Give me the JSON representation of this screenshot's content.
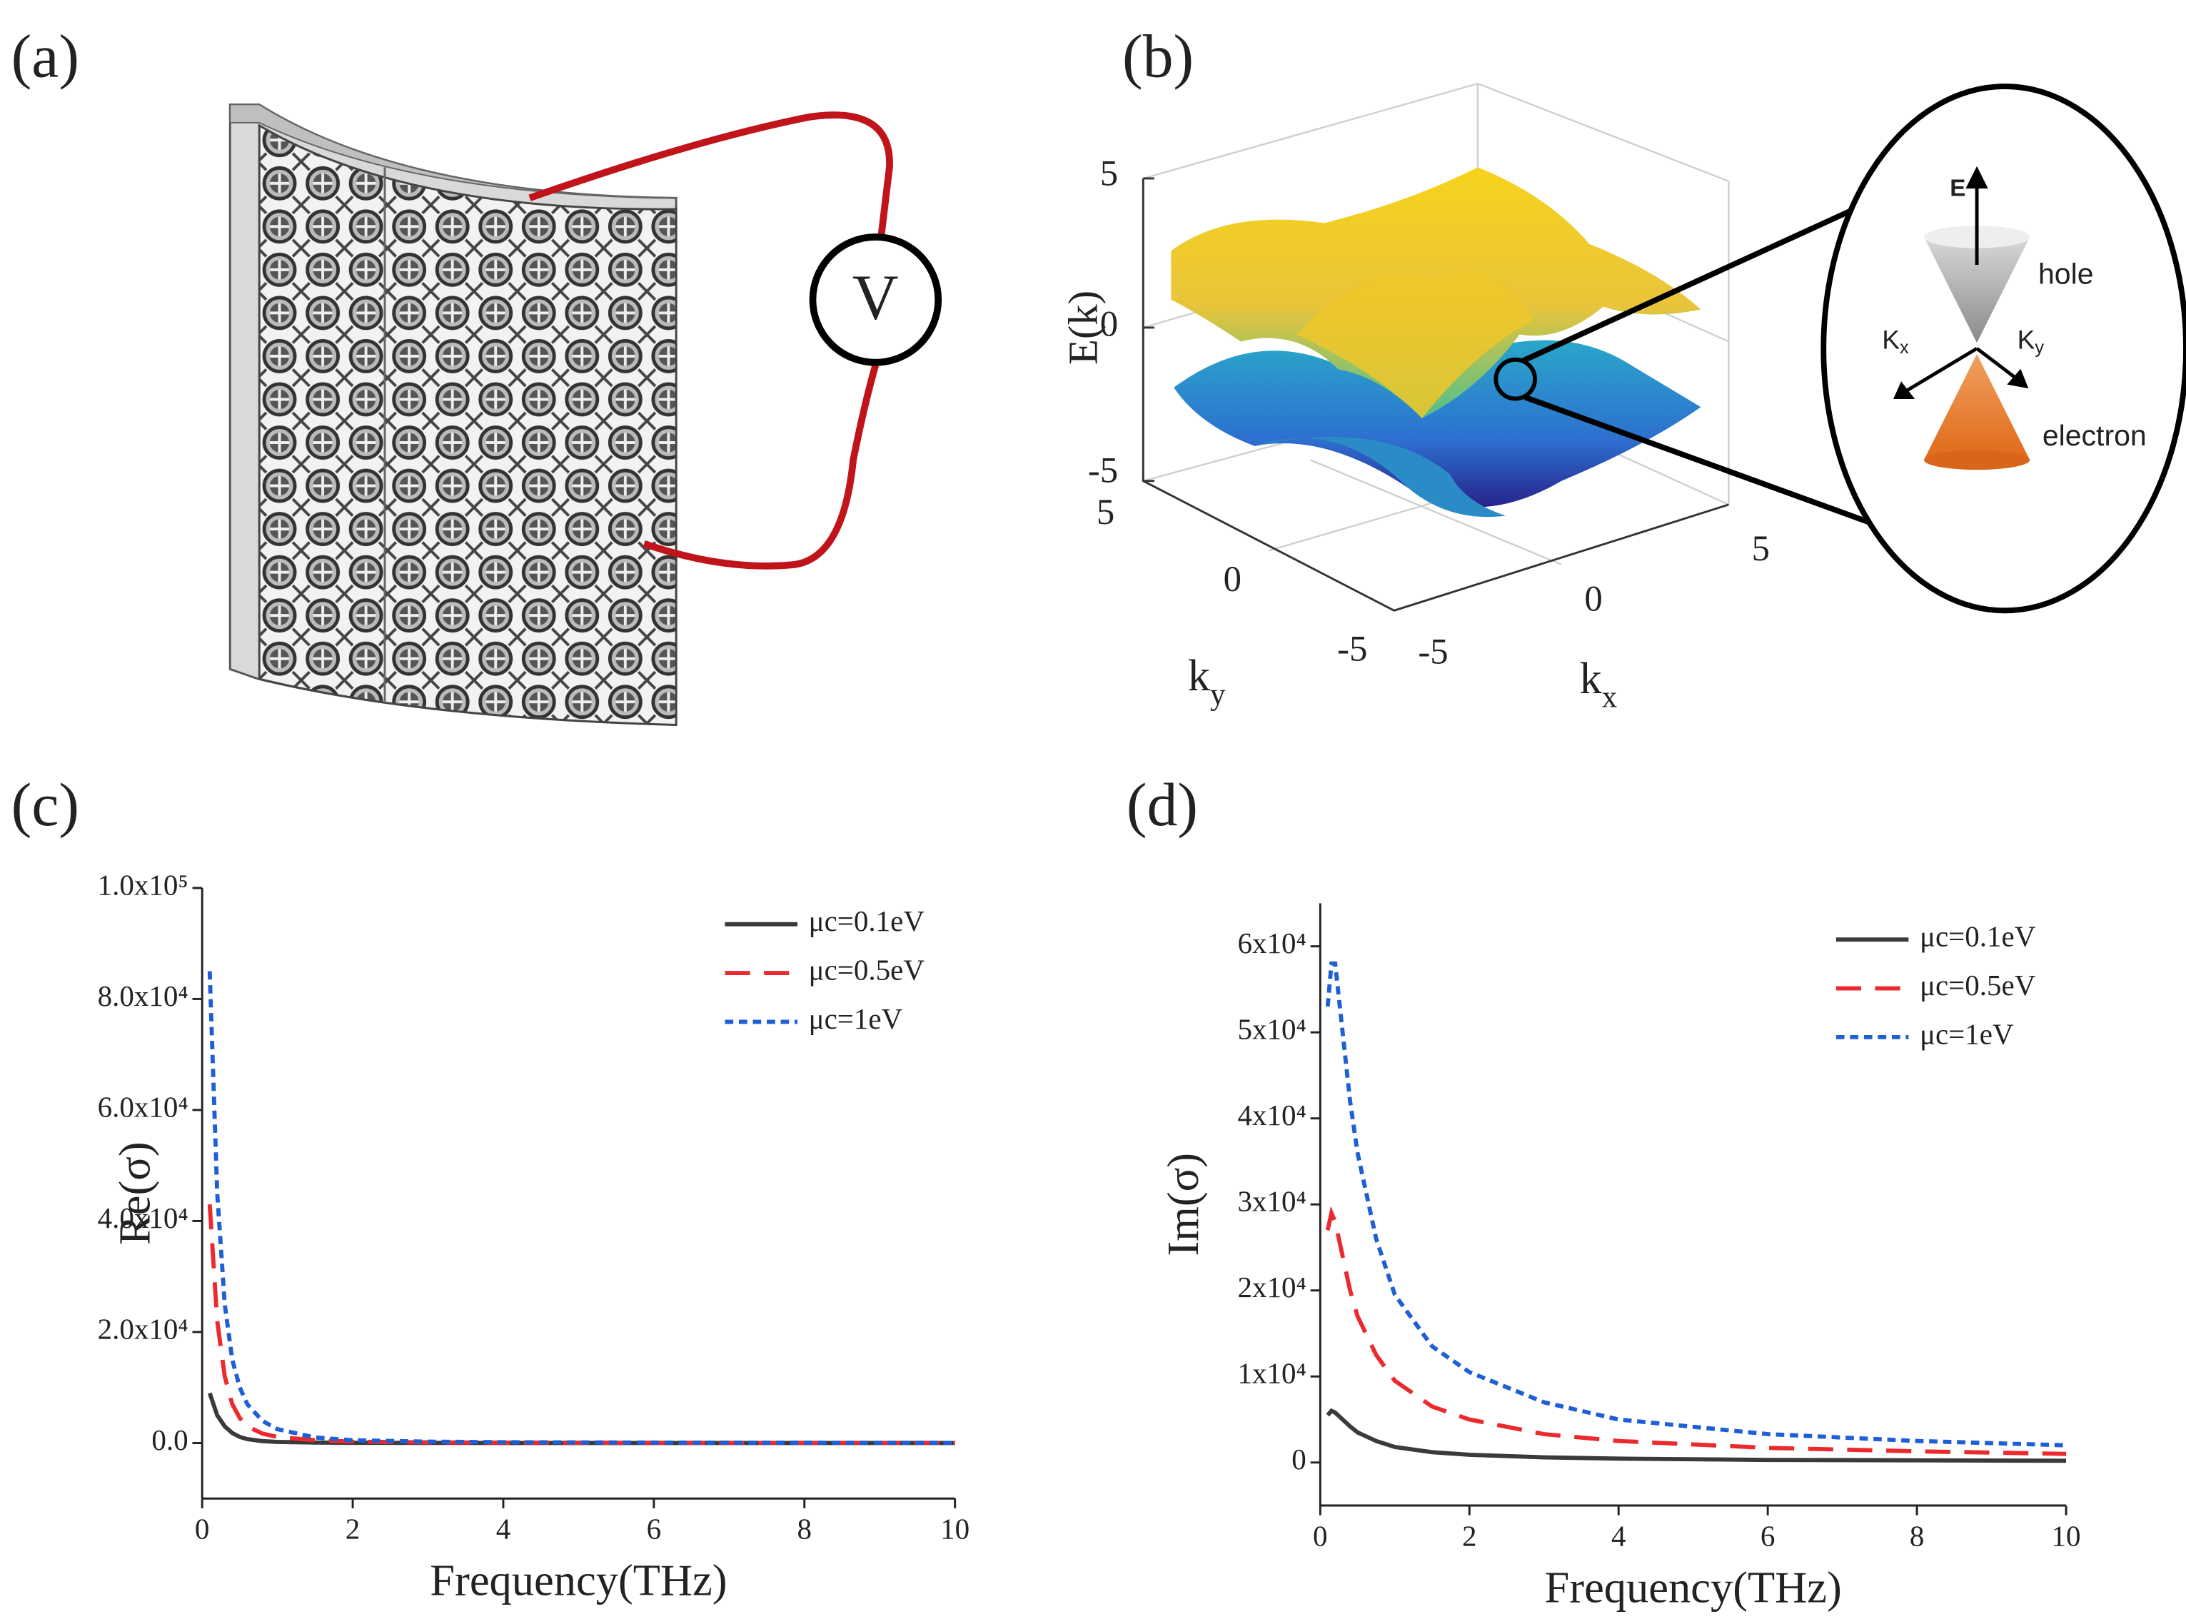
{
  "panels": {
    "a": {
      "label": "(a)",
      "voltmeter": "V"
    },
    "b": {
      "label": "(b)",
      "z_label": "E(k)",
      "z_ticks": [
        5,
        0,
        -5
      ],
      "y_ticks": [
        5,
        0,
        -5
      ],
      "x_ticks": [
        -5,
        0,
        5
      ],
      "y_label": "k",
      "y_label_sub": "y",
      "x_label": "k",
      "x_label_sub": "x",
      "inset": {
        "energy": "E",
        "hole": "hole",
        "electron": "electron",
        "kx": "K",
        "kx_sub": "x",
        "ky": "K",
        "ky_sub": "y"
      }
    }
  },
  "chart_data": [
    {
      "type": "line",
      "panel_label": "(c)",
      "xlabel": "Frequency(THz)",
      "ylabel": "Re(σ)",
      "x": [
        0.1,
        0.2,
        0.3,
        0.4,
        0.5,
        0.6,
        0.8,
        1,
        1.5,
        2,
        3,
        4,
        6,
        8,
        10
      ],
      "series": [
        {
          "name": "μc=0.1eV",
          "color": "#3a3a3a",
          "dash": "solid",
          "values": [
            9000,
            5000,
            3000,
            1800,
            1100,
            700,
            350,
            200,
            80,
            40,
            20,
            10,
            5,
            3,
            2
          ]
        },
        {
          "name": "μc=0.5eV",
          "color": "#ec2a2e",
          "dash": "dashed",
          "values": [
            43000,
            22000,
            12000,
            7000,
            4500,
            3000,
            1700,
            1100,
            500,
            250,
            120,
            70,
            40,
            25,
            15
          ]
        },
        {
          "name": "μc=1eV",
          "color": "#1f5fd6",
          "dash": "dotted",
          "values": [
            85000,
            45000,
            25000,
            15000,
            10000,
            7000,
            4000,
            2500,
            1000,
            500,
            250,
            150,
            80,
            50,
            30
          ]
        }
      ],
      "xlim": [
        0,
        10
      ],
      "xticks": [
        0,
        2,
        4,
        6,
        8,
        10
      ],
      "ylim": [
        -10000,
        100000
      ],
      "yticks": [
        {
          "value": 0,
          "label": "0.0"
        },
        {
          "value": 20000,
          "label": "2.0x10⁴"
        },
        {
          "value": 40000,
          "label": "4.0x10⁴"
        },
        {
          "value": 60000,
          "label": "6.0x10⁴"
        },
        {
          "value": 80000,
          "label": "8.0x10⁴"
        },
        {
          "value": 100000,
          "label": "1.0x10⁵"
        }
      ],
      "legend": "upper right"
    },
    {
      "type": "line",
      "panel_label": "(d)",
      "xlabel": "Frequency(THz)",
      "ylabel": "Im(σ)",
      "x": [
        0.1,
        0.15,
        0.2,
        0.3,
        0.4,
        0.5,
        0.75,
        1,
        1.5,
        2,
        3,
        4,
        6,
        8,
        10
      ],
      "series": [
        {
          "name": "μc=0.1eV",
          "color": "#3a3a3a",
          "dash": "solid",
          "values": [
            5500,
            6000,
            5800,
            5000,
            4200,
            3500,
            2500,
            1800,
            1200,
            900,
            600,
            450,
            300,
            250,
            200
          ]
        },
        {
          "name": "μc=0.5eV",
          "color": "#ec2a2e",
          "dash": "dashed",
          "values": [
            27000,
            29000,
            28000,
            24000,
            20000,
            17000,
            12500,
            9500,
            6500,
            5000,
            3300,
            2500,
            1700,
            1300,
            1000
          ]
        },
        {
          "name": "μc=1eV",
          "color": "#1f5fd6",
          "dash": "dotted",
          "values": [
            53000,
            58000,
            58000,
            50000,
            42000,
            36000,
            26000,
            19500,
            13500,
            10500,
            7000,
            5000,
            3300,
            2500,
            2000
          ]
        }
      ],
      "xlim": [
        0,
        10
      ],
      "xticks": [
        0,
        2,
        4,
        6,
        8,
        10
      ],
      "ylim": [
        -5000,
        65000
      ],
      "yticks": [
        0,
        {
          "value": 10000,
          "label": "1x10⁴"
        },
        {
          "value": 20000,
          "label": "2x10⁴"
        },
        {
          "value": 30000,
          "label": "3x10⁴"
        },
        {
          "value": 40000,
          "label": "4x10⁴"
        },
        {
          "value": 50000,
          "label": "5x10⁴"
        },
        {
          "value": 60000,
          "label": "6x10⁴"
        }
      ],
      "legend": "upper right"
    }
  ]
}
